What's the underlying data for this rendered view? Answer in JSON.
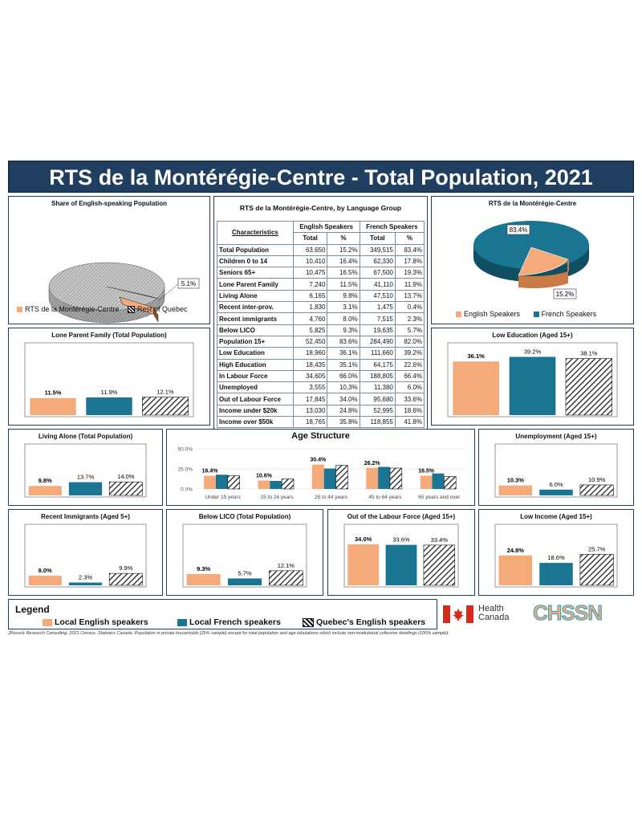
{
  "header": {
    "title": "RTS de la Montérégie-Centre - Total Population, 2021"
  },
  "colors": {
    "english": "#f4aa79",
    "french": "#1a7592",
    "quebec": "hatch",
    "navy": "#1f3e60"
  },
  "pie_share": {
    "title": "Share of English-speaking Population",
    "label": "5.1%",
    "legend": [
      "RTS de la Montérégie-Centre",
      "Rest of Quebec"
    ]
  },
  "pie_lang": {
    "title": "RTS de la Montérégie-Centre",
    "labels": [
      "83.4%",
      "15.2%"
    ],
    "legend": [
      "English Speakers",
      "French Speakers"
    ]
  },
  "table": {
    "title": "RTS de la Montérégie-Centre, by Language Group",
    "col_char": "Characteristics",
    "col_en": "English Speakers",
    "col_fr": "French Speakers",
    "sub_total": "Total",
    "sub_pct": "%",
    "rows": [
      {
        "label": "Total Population",
        "en": "63,650",
        "enp": "15.2%",
        "fr": "349,515",
        "frp": "83.4%"
      },
      {
        "label": "Children 0 to 14",
        "en": "10,410",
        "enp": "16.4%",
        "fr": "62,330",
        "frp": "17.8%"
      },
      {
        "label": "Seniors 65+",
        "en": "10,475",
        "enp": "16.5%",
        "fr": "67,500",
        "frp": "19.3%"
      },
      {
        "label": "Lone Parent Family",
        "en": "7,240",
        "enp": "11.5%",
        "fr": "41,110",
        "frp": "11.9%"
      },
      {
        "label": "Living Alone",
        "en": "6,165",
        "enp": "9.8%",
        "fr": "47,510",
        "frp": "13.7%"
      },
      {
        "label": "Recent inter-prov.",
        "en": "1,830",
        "enp": "3.1%",
        "fr": "1,475",
        "frp": "0.4%"
      },
      {
        "label": "Recent immigrants",
        "en": "4,760",
        "enp": "8.0%",
        "fr": "7,515",
        "frp": "2.3%"
      },
      {
        "label": "Below LICO",
        "en": "5,825",
        "enp": "9.3%",
        "fr": "19,635",
        "frp": "5.7%"
      },
      {
        "label": "Population 15+",
        "en": "52,450",
        "enp": "83.6%",
        "fr": "284,490",
        "frp": "82.0%"
      },
      {
        "label": "Low Education",
        "en": "18,960",
        "enp": "36.1%",
        "fr": "111,660",
        "frp": "39.2%"
      },
      {
        "label": "High Education",
        "en": "18,435",
        "enp": "35.1%",
        "fr": "64,175",
        "frp": "22.6%"
      },
      {
        "label": "In Labour Force",
        "en": "34,605",
        "enp": "66.0%",
        "fr": "188,805",
        "frp": "66.4%"
      },
      {
        "label": "Unemployed",
        "en": "3,555",
        "enp": "10.3%",
        "fr": "11,380",
        "frp": "6.0%"
      },
      {
        "label": "Out of Labour Force",
        "en": "17,845",
        "enp": "34.0%",
        "fr": "95,680",
        "frp": "33.6%"
      },
      {
        "label": "Income under $20k",
        "en": "13,030",
        "enp": "24.8%",
        "fr": "52,995",
        "frp": "18.6%"
      },
      {
        "label": "Income over $50k",
        "en": "18,765",
        "enp": "35.8%",
        "fr": "118,855",
        "frp": "41.8%"
      }
    ]
  },
  "chart_data": [
    {
      "id": "lone",
      "type": "bar",
      "title": "Lone Parent Family (Total Population)",
      "values": [
        11.5,
        11.9,
        12.1
      ],
      "labels": [
        "11.5%",
        "11.9%",
        "12.1%"
      ],
      "ymax": 40
    },
    {
      "id": "lowed",
      "type": "bar",
      "title": "Low Education (Aged 15+)",
      "values": [
        36.1,
        39.2,
        38.1
      ],
      "labels": [
        "36.1%",
        "39.2%",
        "38.1%"
      ],
      "ymax": 40
    },
    {
      "id": "alone",
      "type": "bar",
      "title": "Living Alone (Total Population)",
      "values": [
        9.8,
        13.7,
        14.0
      ],
      "labels": [
        "9.8%",
        "13.7%",
        "14.0%"
      ],
      "ymax": 40
    },
    {
      "id": "unemp",
      "type": "bar",
      "title": "Unemployment (Aged 15+)",
      "values": [
        10.3,
        6.0,
        10.9
      ],
      "labels": [
        "10.3%",
        "6.0%",
        "10.9%"
      ],
      "ymax": 40
    },
    {
      "id": "immig",
      "type": "bar",
      "title": "Recent Immigrants (Aged 5+)",
      "values": [
        8.0,
        2.3,
        9.9
      ],
      "labels": [
        "8.0%",
        "2.3%",
        "9.9%"
      ],
      "ymax": 40
    },
    {
      "id": "lico",
      "type": "bar",
      "title": "Below LICO (Total Population)",
      "values": [
        9.3,
        5.7,
        12.1
      ],
      "labels": [
        "9.3%",
        "5.7%",
        "12.1%"
      ],
      "ymax": 40
    },
    {
      "id": "outlf",
      "type": "bar",
      "title": "Out of the Labour Force (Aged 15+)",
      "values": [
        34.0,
        33.6,
        33.4
      ],
      "labels": [
        "34.0%",
        "33.6%",
        "33.4%"
      ],
      "ymax": 40
    },
    {
      "id": "lowinc",
      "type": "bar",
      "title": "Low Income (Aged 15+)",
      "values": [
        24.8,
        18.6,
        25.7
      ],
      "labels": [
        "24.8%",
        "18.6%",
        "25.7%"
      ],
      "ymax": 40
    },
    {
      "id": "age",
      "type": "bar",
      "title": "Age Structure",
      "categories": [
        "Under 15 years",
        "15 to 24 years",
        "25 to 44 years",
        "45 to 64 years",
        "65 years and over"
      ],
      "series": [
        {
          "name": "Local English speakers",
          "values": [
            16.4,
            10.6,
            30.4,
            26.2,
            16.5
          ]
        },
        {
          "name": "Local French speakers",
          "values": [
            17.8,
            10.0,
            25.5,
            27.5,
            19.3
          ]
        },
        {
          "name": "Quebec's English speakers",
          "values": [
            16.5,
            12.5,
            29.5,
            26.0,
            15.5
          ]
        }
      ],
      "labels": [
        "16.4%",
        "10.6%",
        "30.4%",
        "26.2%",
        "16.5%"
      ],
      "yticks": [
        "50.0%",
        "25.0%",
        "0.0%"
      ],
      "ylim": [
        0,
        50
      ]
    }
  ],
  "legend": {
    "title": "Legend",
    "items": [
      "Local English speakers",
      "Local French speakers",
      "Quebec's English speakers"
    ]
  },
  "logos": {
    "health_canada": [
      "Health",
      "Canada"
    ],
    "chssn": "CHSSN"
  },
  "footnote": "JPocock Research Consulting. 2021 Census. Statistics Canada. Population in private households (25% sample) except for total population and age tabulations which include non-institutional collective dwellings (100% sample)."
}
